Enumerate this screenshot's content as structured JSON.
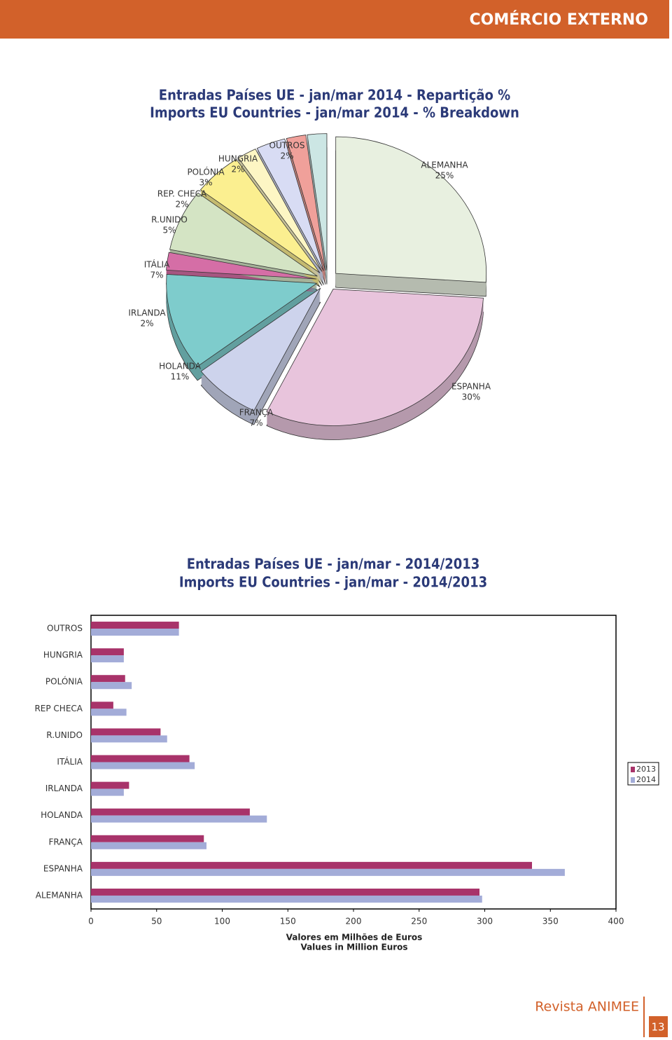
{
  "header": {
    "title": "COMÉRCIO EXTERNO"
  },
  "chart_data": [
    {
      "type": "pie",
      "title": [
        "Entradas Países UE - jan/mar 2014 - Repartição %",
        "Imports EU Countries - jan/mar 2014 - % Breakdown"
      ],
      "categories": [
        "ALEMANHA",
        "ESPANHA",
        "FRANÇA",
        "HOLANDA",
        "IRLANDA",
        "ITÁLIA",
        "R.UNIDO",
        "REP. CHECA",
        "POLÓNIA",
        "HUNGRIA",
        "OUTROS"
      ],
      "values": [
        25,
        30,
        7,
        11,
        2,
        7,
        5,
        2,
        3,
        2,
        2
      ],
      "value_labels": [
        "25%",
        "30%",
        "7%",
        "11%",
        "2%",
        "7%",
        "5%",
        "2%",
        "3%",
        "2%",
        "2%"
      ],
      "colors": [
        "#e8f0e0",
        "#e8c4dc",
        "#cdd3ec",
        "#7ecccc",
        "#d56ea6",
        "#d4e4c4",
        "#fbef90",
        "#fdf6c4",
        "#d8dcf4",
        "#f0a09a",
        "#cce6e4"
      ]
    },
    {
      "type": "hbar",
      "title": [
        "Entradas Países UE - jan/mar - 2014/2013",
        "Imports EU Countries - jan/mar - 2014/2013"
      ],
      "categories": [
        "OUTROS",
        "HUNGRIA",
        "POLÓNIA",
        "REP CHECA",
        "R.UNIDO",
        "ITÁLIA",
        "IRLANDA",
        "HOLANDA",
        "FRANÇA",
        "ESPANHA",
        "ALEMANHA"
      ],
      "series": [
        {
          "name": "2013",
          "color": "#a8336a",
          "values": [
            67,
            25,
            26,
            17,
            53,
            75,
            29,
            121,
            86,
            336,
            296
          ]
        },
        {
          "name": "2014",
          "color": "#a3acd8",
          "values": [
            67,
            25,
            31,
            27,
            58,
            79,
            25,
            134,
            88,
            361,
            298
          ]
        }
      ],
      "xlim": [
        0,
        400
      ],
      "xticks": [
        0,
        50,
        100,
        150,
        200,
        250,
        300,
        350,
        400
      ],
      "x_label": [
        "Valores em Milhões de Euros",
        "Values in Million Euros"
      ],
      "legend": "right"
    }
  ],
  "footer": {
    "magazine": "Revista ANIMEE",
    "page": "13"
  }
}
